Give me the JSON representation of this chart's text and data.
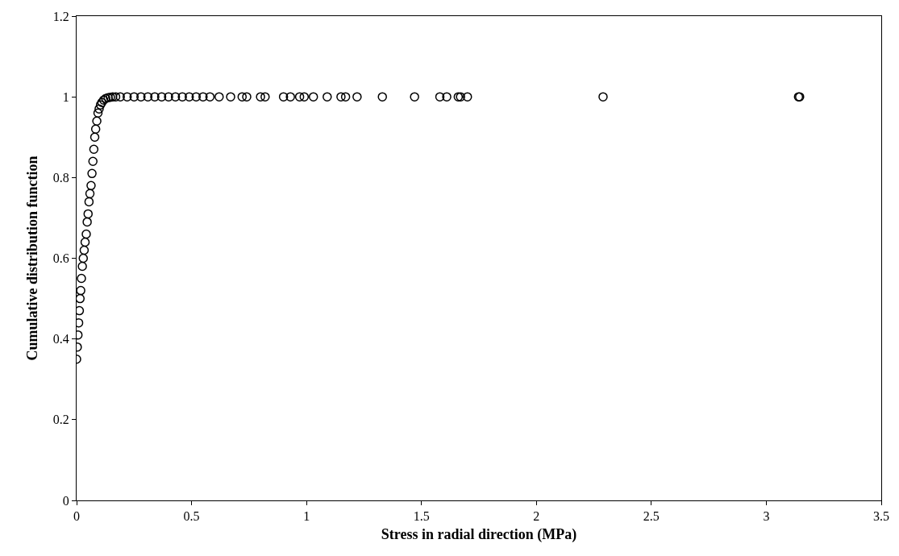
{
  "chart_data": {
    "type": "scatter",
    "xlabel": "Stress in radial direction (MPa)",
    "ylabel": "Cumulative distribution function",
    "x": [
      0.0,
      0.003,
      0.006,
      0.009,
      0.012,
      0.015,
      0.018,
      0.021,
      0.025,
      0.029,
      0.033,
      0.037,
      0.042,
      0.046,
      0.05,
      0.054,
      0.058,
      0.063,
      0.067,
      0.071,
      0.075,
      0.079,
      0.083,
      0.088,
      0.093,
      0.098,
      0.104,
      0.11,
      0.118,
      0.127,
      0.137,
      0.147,
      0.157,
      0.17,
      0.19,
      0.22,
      0.25,
      0.28,
      0.31,
      0.34,
      0.37,
      0.4,
      0.43,
      0.46,
      0.49,
      0.52,
      0.55,
      0.58,
      0.62,
      0.67,
      0.72,
      0.74,
      0.8,
      0.82,
      0.9,
      0.93,
      0.97,
      0.99,
      1.03,
      1.09,
      1.15,
      1.17,
      1.22,
      1.33,
      1.47,
      1.58,
      1.61,
      1.66,
      1.67,
      1.7,
      2.29,
      3.14,
      3.145
    ],
    "values": [
      0.35,
      0.38,
      0.41,
      0.44,
      0.47,
      0.5,
      0.52,
      0.55,
      0.58,
      0.6,
      0.62,
      0.64,
      0.66,
      0.69,
      0.71,
      0.74,
      0.76,
      0.78,
      0.81,
      0.84,
      0.87,
      0.9,
      0.92,
      0.94,
      0.96,
      0.97,
      0.98,
      0.986,
      0.992,
      0.996,
      0.998,
      0.999,
      1.0,
      1.0,
      1.0,
      1.0,
      1.0,
      1.0,
      1.0,
      1.0,
      1.0,
      1.0,
      1.0,
      1.0,
      1.0,
      1.0,
      1.0,
      1.0,
      1.0,
      1.0,
      1.0,
      1.0,
      1.0,
      1.0,
      1.0,
      1.0,
      1.0,
      1.0,
      1.0,
      1.0,
      1.0,
      1.0,
      1.0,
      1.0,
      1.0,
      1.0,
      1.0,
      1.0,
      1.0,
      1.0,
      1.0,
      1.0,
      1.0
    ],
    "color": "#000000",
    "marker": "circle",
    "xlim": [
      0,
      3.5
    ],
    "xticks": [
      0,
      0.5,
      1,
      1.5,
      2,
      2.5,
      3,
      3.5
    ],
    "ylim": [
      0,
      1.2
    ],
    "yticks": [
      0,
      0.2,
      0.4,
      0.6,
      0.8,
      1,
      1.2
    ],
    "legend": false
  }
}
